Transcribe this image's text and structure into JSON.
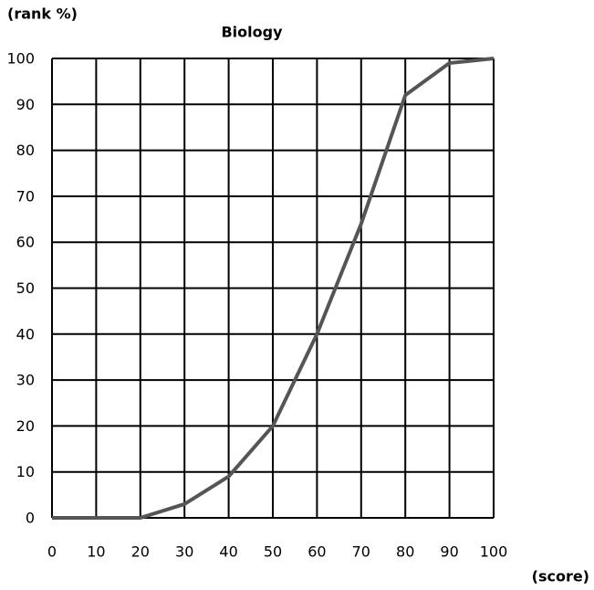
{
  "chart_data": {
    "type": "line",
    "title": "Biology",
    "y_label": "(rank %)",
    "x_label": "(score)",
    "x": [
      0,
      10,
      20,
      30,
      40,
      50,
      60,
      70,
      80,
      90,
      100
    ],
    "series": [
      {
        "name": "Biology",
        "color": "#555555",
        "values": [
          0,
          0,
          0,
          3,
          9,
          20,
          40,
          64,
          92,
          99,
          100
        ]
      }
    ],
    "xlim": [
      0,
      100
    ],
    "xticks": [
      0,
      10,
      20,
      30,
      40,
      50,
      60,
      70,
      80,
      90,
      100
    ],
    "ylim": [
      0,
      100
    ],
    "yticks": [
      0,
      10,
      20,
      30,
      40,
      50,
      60,
      70,
      80,
      90,
      100
    ],
    "grid": true
  }
}
